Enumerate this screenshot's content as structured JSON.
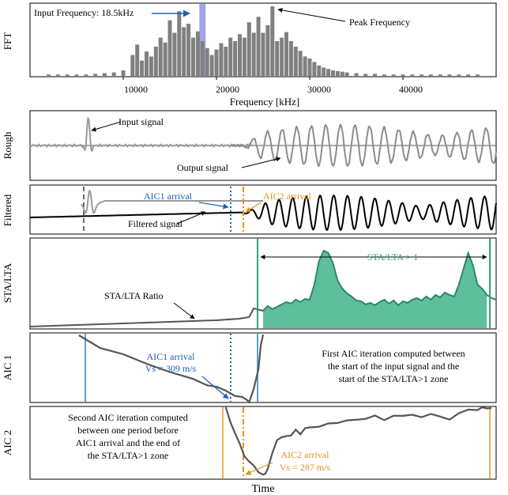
{
  "colors": {
    "gray": "#8c8c8c",
    "dark": "#555555",
    "black": "#000000",
    "blue": "#1f5fb4",
    "orange": "#e0941c",
    "green": "#2fa37f",
    "green_fill": "#5fbf9c",
    "aic_line_blue": "#5aa0d2",
    "aic_line_orange": "#f0b24a",
    "band": "#7b7fe0"
  },
  "chart_data": [
    {
      "type": "bar",
      "panel": "FFT",
      "ylabel": "FFT",
      "xlabel": "Frequency [kHz]",
      "xlim": [
        0,
        50000
      ],
      "xticks": [
        10000,
        20000,
        30000,
        40000
      ],
      "xtick_labels": [
        "10000",
        "20000",
        "30000",
        "40000"
      ],
      "annotations": [
        "Input Frequency: 18.5kHz",
        "Peak Frequency"
      ],
      "highlight_band": 18500,
      "x": [
        2000,
        3000,
        4000,
        5000,
        6000,
        7000,
        8000,
        9000,
        10000,
        11000,
        11500,
        12000,
        12500,
        13000,
        13500,
        14000,
        14500,
        15000,
        15500,
        16000,
        16500,
        17000,
        17500,
        18000,
        18500,
        19000,
        19500,
        20000,
        20500,
        21000,
        21500,
        22000,
        22500,
        23000,
        23500,
        24000,
        24500,
        25000,
        25500,
        26000,
        26500,
        27000,
        27500,
        28000,
        28500,
        29000,
        29500,
        30000,
        30500,
        31000,
        31500,
        32000,
        32500,
        33000,
        33500,
        34000,
        35000,
        36000,
        37000,
        38000,
        39000,
        40000,
        41000,
        42000,
        43000,
        44000,
        45000,
        46000,
        47000,
        48000
      ],
      "values": [
        0.02,
        0.02,
        0.02,
        0.02,
        0.02,
        0.03,
        0.04,
        0.05,
        0.08,
        0.3,
        0.45,
        0.22,
        0.35,
        0.28,
        0.42,
        0.55,
        0.48,
        0.8,
        0.62,
        0.93,
        0.7,
        0.75,
        0.55,
        0.64,
        0.5,
        0.4,
        0.3,
        0.38,
        0.47,
        0.42,
        0.55,
        0.5,
        0.6,
        0.55,
        0.77,
        0.62,
        0.85,
        0.62,
        0.73,
        1.0,
        0.5,
        0.55,
        0.63,
        0.5,
        0.42,
        0.36,
        0.28,
        0.25,
        0.2,
        0.15,
        0.12,
        0.1,
        0.08,
        0.07,
        0.06,
        0.05,
        0.04,
        0.03,
        0.03,
        0.02,
        0.02,
        0.02,
        0.02,
        0.02,
        0.02,
        0.02,
        0.02,
        0.02,
        0.02,
        0.02
      ]
    },
    {
      "type": "line",
      "panel": "Rough",
      "ylabel": "Rough",
      "annotations": [
        "Input signal",
        "Output signal"
      ],
      "x_range": [
        0,
        1
      ],
      "series": [
        {
          "role": "input",
          "wave": {
            "center": 0.125,
            "amp": 0.9,
            "freq": 55,
            "decay": 0.02
          }
        },
        {
          "role": "output",
          "wave": {
            "start": 0.48,
            "amp": 0.55,
            "freq": 70
          }
        }
      ]
    },
    {
      "type": "line",
      "panel": "Filtered",
      "ylabel": "Filtered",
      "annotations": [
        "AIC1 arrival",
        "AIC2 arrival",
        "Filtered signal"
      ],
      "markers": {
        "aic1": 0.47,
        "aic2": 0.505,
        "input_start": 0.105
      }
    },
    {
      "type": "area",
      "panel": "STA/LTA",
      "ylabel": "STA/LTA",
      "annotations": [
        "STA/LTA Ratio",
        "STA/LTA > 1"
      ],
      "x": [
        0.0,
        0.05,
        0.1,
        0.15,
        0.2,
        0.25,
        0.3,
        0.35,
        0.4,
        0.45,
        0.47,
        0.48,
        0.5,
        0.51,
        0.52,
        0.53,
        0.54,
        0.55,
        0.56,
        0.57,
        0.58,
        0.59,
        0.6,
        0.61,
        0.62,
        0.63,
        0.64,
        0.65,
        0.66,
        0.67,
        0.68,
        0.69,
        0.7,
        0.71,
        0.72,
        0.73,
        0.74,
        0.75,
        0.76,
        0.77,
        0.78,
        0.79,
        0.8,
        0.81,
        0.82,
        0.83,
        0.84,
        0.85,
        0.86,
        0.87,
        0.88,
        0.89,
        0.9,
        0.91,
        0.92,
        0.93,
        0.94,
        0.95,
        0.96,
        0.97,
        0.98,
        0.99,
        1.0
      ],
      "values": [
        0.02,
        0.03,
        0.04,
        0.05,
        0.06,
        0.07,
        0.08,
        0.09,
        0.1,
        0.12,
        0.14,
        0.25,
        0.22,
        0.28,
        0.24,
        0.27,
        0.3,
        0.33,
        0.31,
        0.36,
        0.33,
        0.37,
        0.36,
        0.55,
        0.85,
        0.98,
        0.95,
        0.82,
        0.6,
        0.5,
        0.44,
        0.4,
        0.35,
        0.34,
        0.3,
        0.32,
        0.29,
        0.33,
        0.36,
        0.31,
        0.35,
        0.29,
        0.34,
        0.32,
        0.36,
        0.38,
        0.35,
        0.4,
        0.36,
        0.42,
        0.39,
        0.45,
        0.42,
        0.4,
        0.55,
        0.75,
        0.95,
        0.8,
        0.55,
        0.5,
        0.42,
        0.38,
        0.36
      ],
      "threshold_start": 0.5,
      "threshold_end": 0.985
    },
    {
      "type": "line",
      "panel": "AIC 1",
      "ylabel": "AIC 1",
      "annotations": [
        "AIC1 arrival",
        "Vs = 309 m/s",
        "First AIC iteration computed between",
        "the start of the input signal and the",
        "start of the STA/LTA>1 zone"
      ],
      "x": [
        0.105,
        0.15,
        0.2,
        0.25,
        0.3,
        0.35,
        0.38,
        0.4,
        0.42,
        0.44,
        0.455,
        0.465,
        0.47,
        0.48,
        0.49,
        0.495,
        0.5
      ],
      "values": [
        1.0,
        0.82,
        0.7,
        0.58,
        0.45,
        0.33,
        0.26,
        0.22,
        0.16,
        0.1,
        0.06,
        0.03,
        0.0,
        0.18,
        0.5,
        0.85,
        1.0
      ]
    },
    {
      "type": "line",
      "panel": "AIC 2",
      "ylabel": "AIC 2",
      "xlabel": "Time",
      "annotations": [
        "Second AIC iteration computed",
        "between one period before",
        "AIC1 arrival and the end of",
        "the STA/LTA>1 zone",
        "AIC2 arrival",
        "Vs = 287 m/s"
      ],
      "x": [
        0.42,
        0.43,
        0.44,
        0.45,
        0.46,
        0.47,
        0.48,
        0.49,
        0.5,
        0.505,
        0.51,
        0.52,
        0.53,
        0.54,
        0.55,
        0.56,
        0.57,
        0.58,
        0.59,
        0.6,
        0.62,
        0.64,
        0.66,
        0.68,
        0.7,
        0.72,
        0.74,
        0.76,
        0.78,
        0.8,
        0.82,
        0.84,
        0.86,
        0.88,
        0.9,
        0.92,
        0.94,
        0.96,
        0.97,
        0.98,
        0.99
      ],
      "values": [
        1.0,
        0.8,
        0.6,
        0.45,
        0.3,
        0.2,
        0.12,
        0.06,
        0.02,
        0.0,
        0.1,
        0.35,
        0.5,
        0.55,
        0.6,
        0.58,
        0.65,
        0.62,
        0.7,
        0.68,
        0.72,
        0.78,
        0.75,
        0.8,
        0.84,
        0.82,
        0.86,
        0.83,
        0.88,
        0.85,
        0.9,
        0.87,
        0.88,
        0.86,
        0.84,
        0.9,
        0.95,
        0.98,
        1.0,
        0.96,
        1.0
      ]
    }
  ],
  "labels": {
    "fft_ylabel": "FFT",
    "fft_xlabel": "Frequency [kHz]",
    "input_freq": "Input Frequency: 18.5kHz",
    "peak_freq": "Peak Frequency",
    "tick_10000": "10000",
    "tick_20000": "20000",
    "tick_30000": "30000",
    "tick_40000": "40000",
    "rough_ylabel": "Rough",
    "input_signal": "Input signal",
    "output_signal": "Output signal",
    "filtered_ylabel": "Filtered",
    "aic1_arrival": "AIC1 arrival",
    "aic2_arrival": "AIC2 arrival",
    "filtered_signal": "Filtered signal",
    "stalta_ylabel": "STA/LTA",
    "stalta_ratio": "STA/LTA Ratio",
    "stalta_gt1": "STA/LTA > 1",
    "aic1_ylabel": "AIC 1",
    "aic1_vs": "Vs = 309 m/s",
    "aic1_note_1": "First AIC iteration computed between",
    "aic1_note_2": "the start of the input signal and the",
    "aic1_note_3": "start of the STA/LTA>1 zone",
    "aic2_ylabel": "AIC 2",
    "aic2_note_1": "Second AIC iteration computed",
    "aic2_note_2": "between one period before",
    "aic2_note_3": "AIC1 arrival and the end of",
    "aic2_note_4": "the STA/LTA>1 zone",
    "aic2_arrival_label": "AIC2 arrival",
    "aic2_vs": "Vs = 287 m/s",
    "time_xlabel": "Time"
  }
}
